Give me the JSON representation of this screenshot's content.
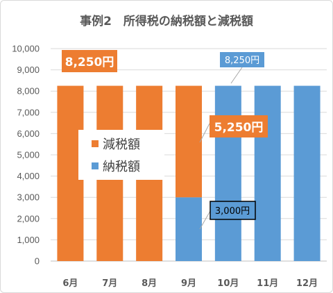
{
  "chart_data": {
    "type": "bar",
    "stacked": true,
    "title": "事例2　所得税の納税額と減税額",
    "categories": [
      "6月",
      "7月",
      "8月",
      "9月",
      "10月",
      "11月",
      "12月"
    ],
    "series": [
      {
        "name": "納税額",
        "color": "#5b9bd5",
        "values": [
          0,
          0,
          0,
          3000,
          8250,
          8250,
          8250
        ]
      },
      {
        "name": "減税額",
        "color": "#ed7d31",
        "values": [
          8250,
          8250,
          8250,
          5250,
          0,
          0,
          0
        ]
      }
    ],
    "ylim": [
      0,
      10000
    ],
    "yticks": [
      "0",
      "1,000",
      "2,000",
      "3,000",
      "4,000",
      "5,000",
      "6,000",
      "7,000",
      "8,000",
      "9,000",
      "10,000"
    ],
    "grid": true,
    "legend": {
      "position": "inside-left",
      "items": [
        "減税額",
        "納税額"
      ]
    },
    "annotations": [
      {
        "text": "8,250円",
        "category": "6月",
        "style": "orange-bold"
      },
      {
        "text": "8,250円",
        "category": "10月",
        "style": "blue"
      },
      {
        "text": "5,250円",
        "category": "9月",
        "style": "orange-bold"
      },
      {
        "text": "3,000円",
        "category": "9月",
        "style": "blue-outlined"
      }
    ]
  }
}
